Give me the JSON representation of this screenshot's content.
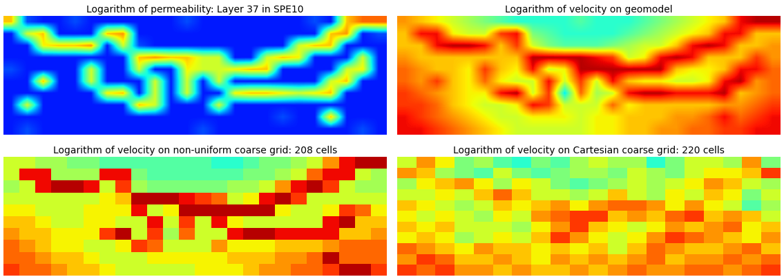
{
  "chart_data": [
    {
      "type": "heatmap",
      "title": "Logarithm of permeability: Layer 37 in SPE10",
      "tick_labels": false,
      "color_range": [
        0,
        1
      ],
      "cells": [
        [
          0.7,
          0.2,
          0.15,
          0.15,
          0.2,
          0.15,
          0.15,
          0.15,
          0.15,
          0.15,
          0.15,
          0.2,
          0.15,
          0.15,
          0.15,
          0.15,
          0.15,
          0.15,
          0.15,
          0.2,
          0.15,
          0.7,
          0.8,
          0.8
        ],
        [
          0.15,
          0.6,
          0.7,
          0.15,
          0.15,
          0.15,
          0.7,
          0.75,
          0.15,
          0.15,
          0.15,
          0.15,
          0.15,
          0.15,
          0.15,
          0.15,
          0.15,
          0.15,
          0.15,
          0.15,
          0.7,
          0.75,
          0.15,
          0.2
        ],
        [
          0.15,
          0.15,
          0.65,
          0.7,
          0.7,
          0.75,
          0.15,
          0.6,
          0.2,
          0.15,
          0.15,
          0.15,
          0.15,
          0.15,
          0.15,
          0.15,
          0.15,
          0.15,
          0.6,
          0.7,
          0.7,
          0.15,
          0.15,
          0.15
        ],
        [
          0.15,
          0.15,
          0.15,
          0.15,
          0.15,
          0.15,
          0.15,
          0.15,
          0.7,
          0.75,
          0.7,
          0.7,
          0.6,
          0.6,
          0.15,
          0.15,
          0.6,
          0.7,
          0.65,
          0.15,
          0.15,
          0.15,
          0.6,
          0.15
        ],
        [
          0.2,
          0.15,
          0.15,
          0.15,
          0.15,
          0.6,
          0.15,
          0.15,
          0.6,
          0.15,
          0.15,
          0.65,
          0.6,
          0.6,
          0.65,
          0.7,
          0.7,
          0.15,
          0.15,
          0.15,
          0.15,
          0.6,
          0.65,
          0.15
        ],
        [
          0.15,
          0.15,
          0.7,
          0.15,
          0.15,
          0.6,
          0.15,
          0.15,
          0.15,
          0.6,
          0.15,
          0.6,
          0.15,
          0.6,
          0.15,
          0.15,
          0.15,
          0.15,
          0.15,
          0.15,
          0.6,
          0.7,
          0.15,
          0.15
        ],
        [
          0.15,
          0.15,
          0.15,
          0.15,
          0.15,
          0.15,
          0.65,
          0.7,
          0.15,
          0.6,
          0.15,
          0.6,
          0.15,
          0.15,
          0.65,
          0.7,
          0.7,
          0.65,
          0.6,
          0.65,
          0.7,
          0.15,
          0.15,
          0.15
        ],
        [
          0.15,
          0.6,
          0.15,
          0.15,
          0.15,
          0.15,
          0.15,
          0.15,
          0.7,
          0.6,
          0.15,
          0.15,
          0.15,
          0.6,
          0.15,
          0.15,
          0.15,
          0.15,
          0.15,
          0.15,
          0.15,
          0.15,
          0.15,
          0.15
        ],
        [
          0.15,
          0.15,
          0.15,
          0.15,
          0.15,
          0.15,
          0.15,
          0.15,
          0.15,
          0.15,
          0.15,
          0.15,
          0.15,
          0.15,
          0.15,
          0.15,
          0.15,
          0.2,
          0.15,
          0.15,
          0.7,
          0.15,
          0.15,
          0.15
        ],
        [
          0.15,
          0.2,
          0.15,
          0.15,
          0.15,
          0.15,
          0.15,
          0.15,
          0.15,
          0.15,
          0.15,
          0.15,
          0.2,
          0.15,
          0.15,
          0.15,
          0.15,
          0.15,
          0.15,
          0.15,
          0.15,
          0.15,
          0.2,
          0.15
        ]
      ]
    },
    {
      "type": "heatmap",
      "title": "Logarithm of velocity on geomodel",
      "tick_labels": false,
      "color_range": [
        0,
        1
      ],
      "cells": [
        [
          0.75,
          0.7,
          0.65,
          0.6,
          0.55,
          0.5,
          0.45,
          0.4,
          0.4,
          0.4,
          0.4,
          0.45,
          0.4,
          0.4,
          0.4,
          0.45,
          0.5,
          0.55,
          0.6,
          0.65,
          0.7,
          0.9,
          0.95,
          0.95
        ],
        [
          0.7,
          0.9,
          0.9,
          0.65,
          0.6,
          0.6,
          0.85,
          0.9,
          0.5,
          0.45,
          0.4,
          0.4,
          0.4,
          0.4,
          0.45,
          0.5,
          0.55,
          0.6,
          0.65,
          0.7,
          0.9,
          0.9,
          0.7,
          0.7
        ],
        [
          0.7,
          0.7,
          0.9,
          0.95,
          0.95,
          0.9,
          0.7,
          0.85,
          0.6,
          0.5,
          0.45,
          0.45,
          0.45,
          0.5,
          0.55,
          0.6,
          0.6,
          0.7,
          0.9,
          0.95,
          0.9,
          0.7,
          0.7,
          0.75
        ],
        [
          0.75,
          0.7,
          0.7,
          0.7,
          0.7,
          0.7,
          0.7,
          0.7,
          0.95,
          0.95,
          0.95,
          0.95,
          0.9,
          0.85,
          0.6,
          0.65,
          0.9,
          0.95,
          0.9,
          0.7,
          0.7,
          0.7,
          0.85,
          0.75
        ],
        [
          0.8,
          0.75,
          0.7,
          0.7,
          0.65,
          0.85,
          0.7,
          0.65,
          0.9,
          0.6,
          0.65,
          0.95,
          0.95,
          0.95,
          0.95,
          0.95,
          0.95,
          0.7,
          0.65,
          0.65,
          0.7,
          0.9,
          0.9,
          0.8
        ],
        [
          0.8,
          0.75,
          0.85,
          0.7,
          0.65,
          0.8,
          0.65,
          0.6,
          0.6,
          0.9,
          0.6,
          0.85,
          0.6,
          0.9,
          0.7,
          0.65,
          0.65,
          0.6,
          0.6,
          0.65,
          0.9,
          0.95,
          0.75,
          0.8
        ],
        [
          0.85,
          0.8,
          0.75,
          0.7,
          0.65,
          0.65,
          0.9,
          0.95,
          0.6,
          0.85,
          0.35,
          0.8,
          0.55,
          0.6,
          0.9,
          0.95,
          0.95,
          0.9,
          0.9,
          0.9,
          0.95,
          0.7,
          0.75,
          0.8
        ],
        [
          0.85,
          0.85,
          0.8,
          0.7,
          0.65,
          0.6,
          0.6,
          0.65,
          0.9,
          0.85,
          0.6,
          0.6,
          0.6,
          0.8,
          0.65,
          0.7,
          0.7,
          0.7,
          0.7,
          0.7,
          0.75,
          0.75,
          0.8,
          0.85
        ],
        [
          0.9,
          0.85,
          0.8,
          0.75,
          0.7,
          0.65,
          0.6,
          0.6,
          0.65,
          0.65,
          0.65,
          0.6,
          0.65,
          0.65,
          0.7,
          0.7,
          0.7,
          0.75,
          0.75,
          0.8,
          0.9,
          0.8,
          0.85,
          0.9
        ],
        [
          0.9,
          0.9,
          0.85,
          0.8,
          0.75,
          0.7,
          0.65,
          0.6,
          0.6,
          0.6,
          0.6,
          0.6,
          0.65,
          0.65,
          0.7,
          0.7,
          0.75,
          0.75,
          0.8,
          0.8,
          0.85,
          0.85,
          0.9,
          0.9
        ]
      ]
    },
    {
      "type": "heatmap",
      "title": "Logarithm of velocity on non-uniform coarse grid: 208 cells",
      "tick_labels": false,
      "color_range": [
        0,
        1
      ],
      "cells": [
        [
          0.6,
          0.6,
          0.55,
          0.55,
          0.5,
          0.5,
          0.45,
          0.45,
          0.45,
          0.45,
          0.45,
          0.45,
          0.45,
          0.4,
          0.4,
          0.45,
          0.5,
          0.5,
          0.55,
          0.6,
          0.75,
          0.9,
          0.95,
          0.95
        ],
        [
          0.6,
          0.9,
          0.9,
          0.55,
          0.55,
          0.55,
          0.9,
          0.9,
          0.5,
          0.45,
          0.45,
          0.45,
          0.45,
          0.45,
          0.45,
          0.5,
          0.5,
          0.55,
          0.6,
          0.8,
          0.9,
          0.9,
          0.6,
          0.55
        ],
        [
          0.55,
          0.6,
          0.9,
          0.95,
          0.95,
          0.9,
          0.6,
          0.85,
          0.55,
          0.5,
          0.5,
          0.5,
          0.5,
          0.5,
          0.55,
          0.55,
          0.6,
          0.75,
          0.9,
          0.95,
          0.85,
          0.6,
          0.55,
          0.55
        ],
        [
          0.6,
          0.6,
          0.6,
          0.6,
          0.6,
          0.6,
          0.65,
          0.7,
          0.95,
          0.95,
          0.95,
          0.9,
          0.85,
          0.8,
          0.6,
          0.65,
          0.9,
          0.95,
          0.85,
          0.6,
          0.6,
          0.6,
          0.6,
          0.6
        ],
        [
          0.65,
          0.65,
          0.6,
          0.6,
          0.6,
          0.65,
          0.65,
          0.65,
          0.9,
          0.6,
          0.65,
          0.95,
          0.95,
          0.95,
          0.95,
          0.95,
          0.95,
          0.65,
          0.6,
          0.6,
          0.65,
          0.85,
          0.8,
          0.65
        ],
        [
          0.7,
          0.7,
          0.65,
          0.6,
          0.6,
          0.65,
          0.65,
          0.6,
          0.6,
          0.9,
          0.6,
          0.85,
          0.6,
          0.9,
          0.65,
          0.6,
          0.6,
          0.6,
          0.6,
          0.6,
          0.9,
          0.95,
          0.7,
          0.7
        ],
        [
          0.75,
          0.7,
          0.7,
          0.65,
          0.65,
          0.65,
          0.85,
          0.95,
          0.6,
          0.85,
          0.55,
          0.8,
          0.6,
          0.6,
          0.9,
          0.95,
          0.95,
          0.9,
          0.9,
          0.9,
          0.9,
          0.7,
          0.7,
          0.75
        ],
        [
          0.8,
          0.75,
          0.7,
          0.65,
          0.65,
          0.6,
          0.6,
          0.65,
          0.85,
          0.8,
          0.6,
          0.6,
          0.6,
          0.75,
          0.65,
          0.65,
          0.65,
          0.7,
          0.7,
          0.7,
          0.75,
          0.8,
          0.8,
          0.8
        ],
        [
          0.8,
          0.8,
          0.75,
          0.7,
          0.7,
          0.65,
          0.6,
          0.6,
          0.6,
          0.65,
          0.65,
          0.65,
          0.65,
          0.65,
          0.7,
          0.7,
          0.7,
          0.75,
          0.75,
          0.8,
          0.95,
          0.8,
          0.8,
          0.8
        ],
        [
          0.85,
          0.8,
          0.8,
          0.75,
          0.7,
          0.7,
          0.65,
          0.6,
          0.6,
          0.6,
          0.6,
          0.6,
          0.65,
          0.65,
          0.65,
          0.7,
          0.75,
          0.75,
          0.8,
          0.8,
          0.85,
          0.95,
          0.95,
          0.85
        ]
      ]
    },
    {
      "type": "heatmap",
      "title": "Logarithm of velocity on Cartesian coarse grid: 220 cells",
      "tick_labels": false,
      "color_range": [
        0,
        1
      ],
      "cells": [
        [
          0.6,
          0.75,
          0.65,
          0.5,
          0.55,
          0.45,
          0.4,
          0.5,
          0.45,
          0.55,
          0.6,
          0.55,
          0.55,
          0.4,
          0.5,
          0.6,
          0.6,
          0.55,
          0.75,
          0.5
        ],
        [
          0.75,
          0.7,
          0.55,
          0.5,
          0.45,
          0.6,
          0.5,
          0.45,
          0.5,
          0.55,
          0.55,
          0.5,
          0.6,
          0.55,
          0.5,
          0.6,
          0.65,
          0.65,
          0.7,
          0.85
        ],
        [
          0.55,
          0.65,
          0.7,
          0.75,
          0.65,
          0.55,
          0.65,
          0.6,
          0.5,
          0.45,
          0.5,
          0.55,
          0.6,
          0.55,
          0.6,
          0.65,
          0.75,
          0.7,
          0.6,
          0.55
        ],
        [
          0.6,
          0.6,
          0.65,
          0.6,
          0.7,
          0.8,
          0.7,
          0.6,
          0.6,
          0.55,
          0.6,
          0.7,
          0.6,
          0.55,
          0.65,
          0.6,
          0.7,
          0.65,
          0.5,
          0.6
        ],
        [
          0.7,
          0.65,
          0.6,
          0.55,
          0.6,
          0.7,
          0.65,
          0.7,
          0.75,
          0.65,
          0.75,
          0.8,
          0.8,
          0.75,
          0.65,
          0.75,
          0.65,
          0.6,
          0.45,
          0.55
        ],
        [
          0.65,
          0.6,
          0.65,
          0.6,
          0.55,
          0.65,
          0.6,
          0.75,
          0.8,
          0.85,
          0.85,
          0.7,
          0.75,
          0.7,
          0.8,
          0.85,
          0.7,
          0.75,
          0.7,
          0.6
        ],
        [
          0.7,
          0.65,
          0.7,
          0.6,
          0.6,
          0.6,
          0.55,
          0.65,
          0.75,
          0.85,
          0.7,
          0.65,
          0.6,
          0.65,
          0.75,
          0.7,
          0.75,
          0.8,
          0.65,
          0.7
        ],
        [
          0.65,
          0.7,
          0.65,
          0.55,
          0.6,
          0.65,
          0.6,
          0.7,
          0.85,
          0.75,
          0.65,
          0.6,
          0.65,
          0.75,
          0.85,
          0.8,
          0.75,
          0.7,
          0.65,
          0.75
        ],
        [
          0.8,
          0.75,
          0.7,
          0.65,
          0.75,
          0.7,
          0.7,
          0.65,
          0.7,
          0.65,
          0.7,
          0.6,
          0.7,
          0.8,
          0.75,
          0.7,
          0.7,
          0.75,
          0.8,
          0.7
        ],
        [
          0.75,
          0.85,
          0.8,
          0.7,
          0.7,
          0.75,
          0.7,
          0.65,
          0.75,
          0.7,
          0.75,
          0.7,
          0.75,
          0.8,
          0.7,
          0.75,
          0.75,
          0.8,
          0.75,
          0.8
        ],
        [
          0.85,
          0.8,
          0.85,
          0.75,
          0.75,
          0.7,
          0.75,
          0.7,
          0.7,
          0.75,
          0.7,
          0.75,
          0.8,
          0.75,
          0.75,
          0.8,
          0.8,
          0.75,
          0.8,
          0.85
        ]
      ]
    }
  ]
}
